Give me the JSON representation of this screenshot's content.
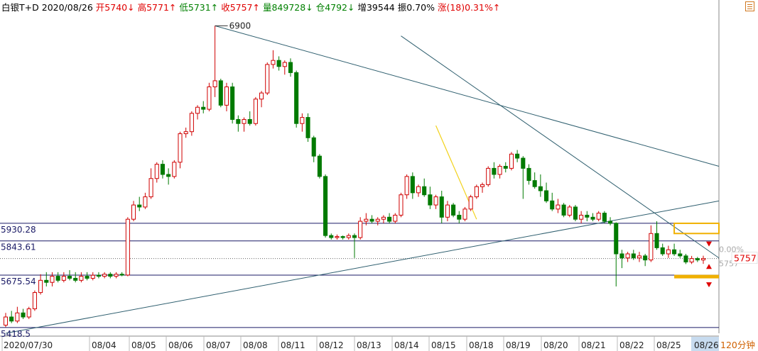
{
  "header": {
    "instrument": "白银T+D",
    "date": "2020/08/26",
    "open": "开5740↓",
    "high": "高5771↑",
    "low": "低5731↑",
    "close": "收5757↑",
    "volume": "量849728↓",
    "position": "仓4792↓",
    "increase": "增39544",
    "amplitude": "振0.70%",
    "change": "涨(18)0.31%↑"
  },
  "period_label": "120分钟",
  "price_tag": "5757",
  "right_partial_label": "0.00%",
  "right_partial_label2": "5757",
  "colors": {
    "up": "#d00000",
    "down": "#007a00",
    "trend": "#2f5f6f",
    "level": "#1a1a66",
    "box": "#f0b000",
    "fib": "#f2d21c"
  },
  "chart_data": {
    "type": "candlestick",
    "ylim": [
      5390,
      6950
    ],
    "peak_label": "6900",
    "levels": [
      {
        "value": 5930.28,
        "label": "5930.28"
      },
      {
        "value": 5843.61,
        "label": "5843.61"
      },
      {
        "value": 5675.54,
        "label": "5675.54"
      },
      {
        "value": 5418.5,
        "label": "5418.5"
      }
    ],
    "dotted_level": 5757,
    "x_labels": [
      "2020/07/30",
      "08/04",
      "08/05",
      "08/06",
      "08/07",
      "08/08",
      "08/11",
      "08/12",
      "08/13",
      "08/14",
      "08/15",
      "08/18",
      "08/19",
      "08/20",
      "08/21",
      "08/22",
      "08/25",
      "08/26"
    ],
    "candles": [
      {
        "o": 5430,
        "h": 5490,
        "l": 5420,
        "c": 5470
      },
      {
        "o": 5470,
        "h": 5500,
        "l": 5440,
        "c": 5450
      },
      {
        "o": 5450,
        "h": 5520,
        "l": 5440,
        "c": 5490
      },
      {
        "o": 5490,
        "h": 5510,
        "l": 5460,
        "c": 5470
      },
      {
        "o": 5470,
        "h": 5520,
        "l": 5460,
        "c": 5510
      },
      {
        "o": 5510,
        "h": 5600,
        "l": 5500,
        "c": 5590
      },
      {
        "o": 5590,
        "h": 5680,
        "l": 5580,
        "c": 5650
      },
      {
        "o": 5650,
        "h": 5690,
        "l": 5620,
        "c": 5640
      },
      {
        "o": 5640,
        "h": 5690,
        "l": 5620,
        "c": 5670
      },
      {
        "o": 5670,
        "h": 5690,
        "l": 5640,
        "c": 5650
      },
      {
        "o": 5650,
        "h": 5690,
        "l": 5640,
        "c": 5670
      },
      {
        "o": 5670,
        "h": 5700,
        "l": 5650,
        "c": 5660
      },
      {
        "o": 5660,
        "h": 5690,
        "l": 5640,
        "c": 5650
      },
      {
        "o": 5650,
        "h": 5690,
        "l": 5640,
        "c": 5670
      },
      {
        "o": 5670,
        "h": 5690,
        "l": 5650,
        "c": 5660
      },
      {
        "o": 5660,
        "h": 5690,
        "l": 5650,
        "c": 5675
      },
      {
        "o": 5675,
        "h": 5690,
        "l": 5660,
        "c": 5670
      },
      {
        "o": 5670,
        "h": 5690,
        "l": 5660,
        "c": 5680
      },
      {
        "o": 5680,
        "h": 5690,
        "l": 5660,
        "c": 5670
      },
      {
        "o": 5670,
        "h": 5690,
        "l": 5660,
        "c": 5680
      },
      {
        "o": 5680,
        "h": 5690,
        "l": 5670,
        "c": 5676
      },
      {
        "o": 5676,
        "h": 5960,
        "l": 5670,
        "c": 5950
      },
      {
        "o": 5950,
        "h": 6040,
        "l": 5940,
        "c": 6020
      },
      {
        "o": 6020,
        "h": 6060,
        "l": 5990,
        "c": 6010
      },
      {
        "o": 6010,
        "h": 6080,
        "l": 6000,
        "c": 6060
      },
      {
        "o": 6060,
        "h": 6200,
        "l": 6050,
        "c": 6150
      },
      {
        "o": 6150,
        "h": 6230,
        "l": 6130,
        "c": 6220
      },
      {
        "o": 6220,
        "h": 6240,
        "l": 6150,
        "c": 6170
      },
      {
        "o": 6170,
        "h": 6200,
        "l": 6120,
        "c": 6160
      },
      {
        "o": 6160,
        "h": 6240,
        "l": 6150,
        "c": 6230
      },
      {
        "o": 6230,
        "h": 6380,
        "l": 6200,
        "c": 6370
      },
      {
        "o": 6370,
        "h": 6400,
        "l": 6350,
        "c": 6380
      },
      {
        "o": 6380,
        "h": 6480,
        "l": 6360,
        "c": 6470
      },
      {
        "o": 6470,
        "h": 6510,
        "l": 6440,
        "c": 6500
      },
      {
        "o": 6500,
        "h": 6530,
        "l": 6470,
        "c": 6490
      },
      {
        "o": 6490,
        "h": 6620,
        "l": 6480,
        "c": 6600
      },
      {
        "o": 6600,
        "h": 6900,
        "l": 6550,
        "c": 6630
      },
      {
        "o": 6630,
        "h": 6640,
        "l": 6500,
        "c": 6510
      },
      {
        "o": 6510,
        "h": 6620,
        "l": 6480,
        "c": 6600
      },
      {
        "o": 6600,
        "h": 6620,
        "l": 6420,
        "c": 6440
      },
      {
        "o": 6440,
        "h": 6460,
        "l": 6380,
        "c": 6420
      },
      {
        "o": 6420,
        "h": 6450,
        "l": 6380,
        "c": 6440
      },
      {
        "o": 6440,
        "h": 6480,
        "l": 6410,
        "c": 6420
      },
      {
        "o": 6420,
        "h": 6550,
        "l": 6410,
        "c": 6540
      },
      {
        "o": 6540,
        "h": 6580,
        "l": 6500,
        "c": 6570
      },
      {
        "o": 6570,
        "h": 6720,
        "l": 6560,
        "c": 6710
      },
      {
        "o": 6710,
        "h": 6780,
        "l": 6690,
        "c": 6730
      },
      {
        "o": 6730,
        "h": 6750,
        "l": 6680,
        "c": 6700
      },
      {
        "o": 6700,
        "h": 6730,
        "l": 6660,
        "c": 6720
      },
      {
        "o": 6720,
        "h": 6740,
        "l": 6650,
        "c": 6670
      },
      {
        "o": 6670,
        "h": 6680,
        "l": 6400,
        "c": 6420
      },
      {
        "o": 6420,
        "h": 6470,
        "l": 6380,
        "c": 6450
      },
      {
        "o": 6450,
        "h": 6470,
        "l": 6330,
        "c": 6350
      },
      {
        "o": 6350,
        "h": 6360,
        "l": 6230,
        "c": 6260
      },
      {
        "o": 6260,
        "h": 6270,
        "l": 6150,
        "c": 6160
      },
      {
        "o": 6160,
        "h": 6170,
        "l": 5860,
        "c": 5870
      },
      {
        "o": 5870,
        "h": 5880,
        "l": 5850,
        "c": 5860
      },
      {
        "o": 5860,
        "h": 5875,
        "l": 5850,
        "c": 5865
      },
      {
        "o": 5865,
        "h": 5870,
        "l": 5850,
        "c": 5860
      },
      {
        "o": 5860,
        "h": 5880,
        "l": 5850,
        "c": 5870
      },
      {
        "o": 5870,
        "h": 5880,
        "l": 5760,
        "c": 5860
      },
      {
        "o": 5860,
        "h": 5960,
        "l": 5850,
        "c": 5940
      },
      {
        "o": 5940,
        "h": 5980,
        "l": 5920,
        "c": 5950
      },
      {
        "o": 5950,
        "h": 5970,
        "l": 5930,
        "c": 5940
      },
      {
        "o": 5940,
        "h": 5960,
        "l": 5920,
        "c": 5950
      },
      {
        "o": 5950,
        "h": 5970,
        "l": 5930,
        "c": 5960
      },
      {
        "o": 5960,
        "h": 5980,
        "l": 5930,
        "c": 5940
      },
      {
        "o": 5940,
        "h": 5980,
        "l": 5930,
        "c": 5970
      },
      {
        "o": 5970,
        "h": 6080,
        "l": 5960,
        "c": 6070
      },
      {
        "o": 6070,
        "h": 6170,
        "l": 6050,
        "c": 6160
      },
      {
        "o": 6160,
        "h": 6180,
        "l": 6050,
        "c": 6080
      },
      {
        "o": 6080,
        "h": 6120,
        "l": 6060,
        "c": 6110
      },
      {
        "o": 6110,
        "h": 6150,
        "l": 6060,
        "c": 6070
      },
      {
        "o": 6070,
        "h": 6110,
        "l": 6000,
        "c": 6020
      },
      {
        "o": 6020,
        "h": 6070,
        "l": 6000,
        "c": 6060
      },
      {
        "o": 6060,
        "h": 6090,
        "l": 5930,
        "c": 5960
      },
      {
        "o": 5960,
        "h": 6040,
        "l": 5940,
        "c": 6020
      },
      {
        "o": 6020,
        "h": 6030,
        "l": 5960,
        "c": 5970
      },
      {
        "o": 5970,
        "h": 5990,
        "l": 5930,
        "c": 5950
      },
      {
        "o": 5950,
        "h": 6010,
        "l": 5940,
        "c": 6000
      },
      {
        "o": 6000,
        "h": 6070,
        "l": 5990,
        "c": 6060
      },
      {
        "o": 6060,
        "h": 6120,
        "l": 6050,
        "c": 6110
      },
      {
        "o": 6110,
        "h": 6130,
        "l": 6080,
        "c": 6120
      },
      {
        "o": 6120,
        "h": 6210,
        "l": 6110,
        "c": 6200
      },
      {
        "o": 6200,
        "h": 6230,
        "l": 6150,
        "c": 6170
      },
      {
        "o": 6170,
        "h": 6220,
        "l": 6150,
        "c": 6210
      },
      {
        "o": 6210,
        "h": 6230,
        "l": 6180,
        "c": 6200
      },
      {
        "o": 6200,
        "h": 6280,
        "l": 6190,
        "c": 6270
      },
      {
        "o": 6270,
        "h": 6290,
        "l": 6230,
        "c": 6250
      },
      {
        "o": 6250,
        "h": 6260,
        "l": 6050,
        "c": 6200
      },
      {
        "o": 6200,
        "h": 6220,
        "l": 6120,
        "c": 6140
      },
      {
        "o": 6140,
        "h": 6180,
        "l": 6100,
        "c": 6110
      },
      {
        "o": 6110,
        "h": 6170,
        "l": 6060,
        "c": 6090
      },
      {
        "o": 6090,
        "h": 6130,
        "l": 6030,
        "c": 6040
      },
      {
        "o": 6040,
        "h": 6080,
        "l": 5990,
        "c": 6000
      },
      {
        "o": 6000,
        "h": 6050,
        "l": 5980,
        "c": 6020
      },
      {
        "o": 6020,
        "h": 6030,
        "l": 5960,
        "c": 5970
      },
      {
        "o": 5970,
        "h": 6020,
        "l": 5960,
        "c": 6010
      },
      {
        "o": 6010,
        "h": 6020,
        "l": 5940,
        "c": 5950
      },
      {
        "o": 5950,
        "h": 5990,
        "l": 5930,
        "c": 5970
      },
      {
        "o": 5970,
        "h": 5990,
        "l": 5940,
        "c": 5960
      },
      {
        "o": 5960,
        "h": 5980,
        "l": 5940,
        "c": 5950
      },
      {
        "o": 5950,
        "h": 5990,
        "l": 5940,
        "c": 5980
      },
      {
        "o": 5980,
        "h": 5990,
        "l": 5930,
        "c": 5940
      },
      {
        "o": 5940,
        "h": 5960,
        "l": 5920,
        "c": 5930
      },
      {
        "o": 5930,
        "h": 5935,
        "l": 5620,
        "c": 5780
      },
      {
        "o": 5780,
        "h": 5800,
        "l": 5710,
        "c": 5760
      },
      {
        "o": 5760,
        "h": 5790,
        "l": 5740,
        "c": 5780
      },
      {
        "o": 5780,
        "h": 5800,
        "l": 5750,
        "c": 5760
      },
      {
        "o": 5760,
        "h": 5790,
        "l": 5740,
        "c": 5770
      },
      {
        "o": 5770,
        "h": 5780,
        "l": 5720,
        "c": 5750
      },
      {
        "o": 5750,
        "h": 5920,
        "l": 5740,
        "c": 5880
      },
      {
        "o": 5880,
        "h": 5940,
        "l": 5800,
        "c": 5810
      },
      {
        "o": 5810,
        "h": 5830,
        "l": 5770,
        "c": 5780
      },
      {
        "o": 5780,
        "h": 5820,
        "l": 5760,
        "c": 5800
      },
      {
        "o": 5800,
        "h": 5830,
        "l": 5770,
        "c": 5780
      },
      {
        "o": 5780,
        "h": 5800,
        "l": 5760,
        "c": 5770
      },
      {
        "o": 5770,
        "h": 5780,
        "l": 5730,
        "c": 5740
      },
      {
        "o": 5740,
        "h": 5770,
        "l": 5730,
        "c": 5757
      },
      {
        "o": 5757,
        "h": 5765,
        "l": 5740,
        "c": 5750
      },
      {
        "o": 5750,
        "h": 5771,
        "l": 5731,
        "c": 5757
      }
    ],
    "volume_hint": null,
    "annotations": {
      "green_boxes": [],
      "gold_box": {
        "from_x_index": 115,
        "to_x_index": 126,
        "top": 5930,
        "bottom": 5880
      },
      "gold_bar": {
        "from_x_index": 115,
        "to_x_index": 126,
        "value": 5670
      }
    }
  }
}
